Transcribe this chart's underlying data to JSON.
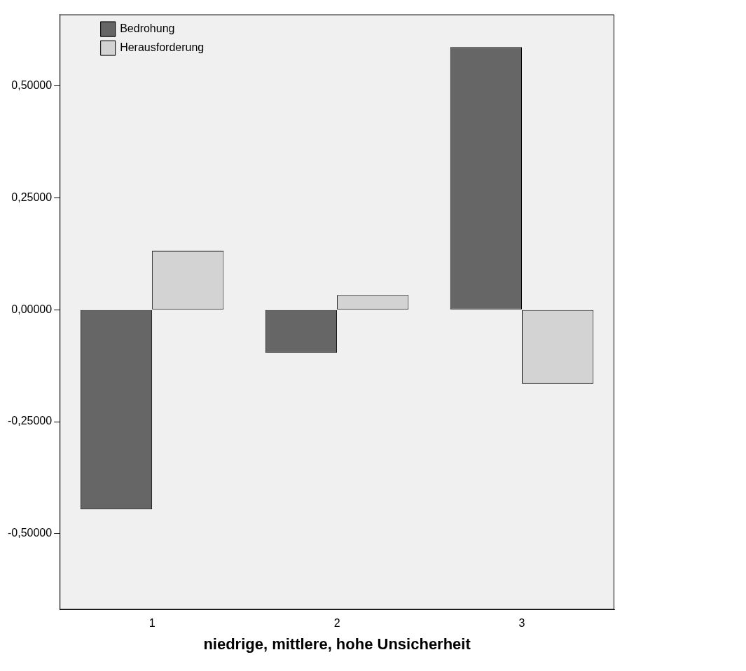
{
  "chart_data": {
    "type": "bar",
    "xlabel": "niedrige, mittlere, hohe Unsicherheit",
    "categories": [
      "1",
      "2",
      "3"
    ],
    "series": [
      {
        "name": "Bedrohung",
        "color": "#666666",
        "values": [
          -0.446,
          -0.096,
          0.587
        ]
      },
      {
        "name": "Herausforderung",
        "color": "#d3d3d3",
        "values": [
          0.132,
          0.033,
          -0.165
        ]
      }
    ],
    "ylim": [
      -0.67,
      0.66
    ],
    "yticks": [
      {
        "value": -0.5,
        "label": "-0,50000"
      },
      {
        "value": -0.25,
        "label": "-0,25000"
      },
      {
        "value": 0,
        "label": "0,00000"
      },
      {
        "value": 0.25,
        "label": "0,25000"
      },
      {
        "value": 0.5,
        "label": "0,50000"
      }
    ],
    "grid": false,
    "legend": "top left"
  }
}
